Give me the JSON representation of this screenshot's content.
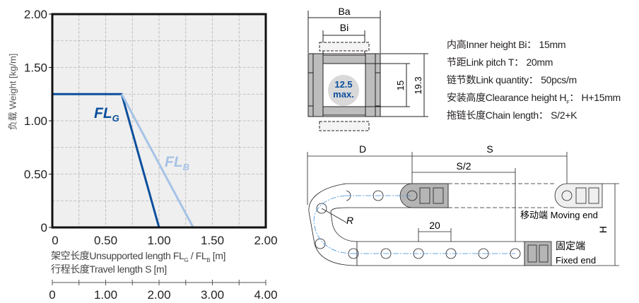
{
  "chart_data": {
    "type": "line",
    "ylabel": "负载 Weight  [kg/m]",
    "xlabel": "架空长度Unsupported length FLG / FLB [m]",
    "xlabel_parts": {
      "prefix": "架空长度Unsupported length FL",
      "sub1": "G",
      "mid": " / FL",
      "sub2": "B",
      "suffix": " [m]"
    },
    "xlabel2": "行程长度Travel length S [m]",
    "ylim": [
      0,
      2.0
    ],
    "xlim": [
      0,
      2.0
    ],
    "yticks": [
      "0",
      "0.50",
      "1.00",
      "1.50",
      "2.00"
    ],
    "xticks": [
      "0",
      "0.50",
      "1.00",
      "1.50",
      "2.00"
    ],
    "x2ticks": [
      "0",
      "1.00",
      "2.00",
      "3.00",
      "4.00"
    ],
    "grid": true,
    "series": [
      {
        "name": "FLG",
        "label_main": "FL",
        "label_sub": "G",
        "color": "#0b4f9c",
        "x": [
          0,
          0.65,
          1.0
        ],
        "y": [
          1.25,
          1.25,
          0
        ]
      },
      {
        "name": "FLB",
        "label_main": "FL",
        "label_sub": "B",
        "color": "#a6c3e6",
        "x": [
          0.65,
          1.32
        ],
        "y": [
          1.25,
          0
        ]
      }
    ]
  },
  "cross_section": {
    "ba_label": "Ba",
    "bi_label": "Bi",
    "max_value": "12.5",
    "max_label": "max.",
    "dim_inner": "15",
    "dim_outer": "19.3"
  },
  "specs": [
    {
      "label": "内高Inner height Bi：",
      "value": "15mm"
    },
    {
      "label": "节距Link pitch T：",
      "value": "20mm"
    },
    {
      "label": "链节数Link quantity：",
      "value": "50pcs/m"
    },
    {
      "label_main": "安装高度Clearance height H",
      "label_sub": "F",
      "label_end": "：",
      "value": "H+15mm"
    },
    {
      "label": "拖链长度Chain length：",
      "value": "S/2+K"
    }
  ],
  "chain_diagram": {
    "d_label": "D",
    "s_label": "S",
    "s_half_label": "S/2",
    "pitch_label": "20",
    "radius_label": "R",
    "h_label": "H",
    "moving_end": "移动端 Moving end",
    "fixed_end_cn": "固定端",
    "fixed_end_en": "Fixed end"
  }
}
